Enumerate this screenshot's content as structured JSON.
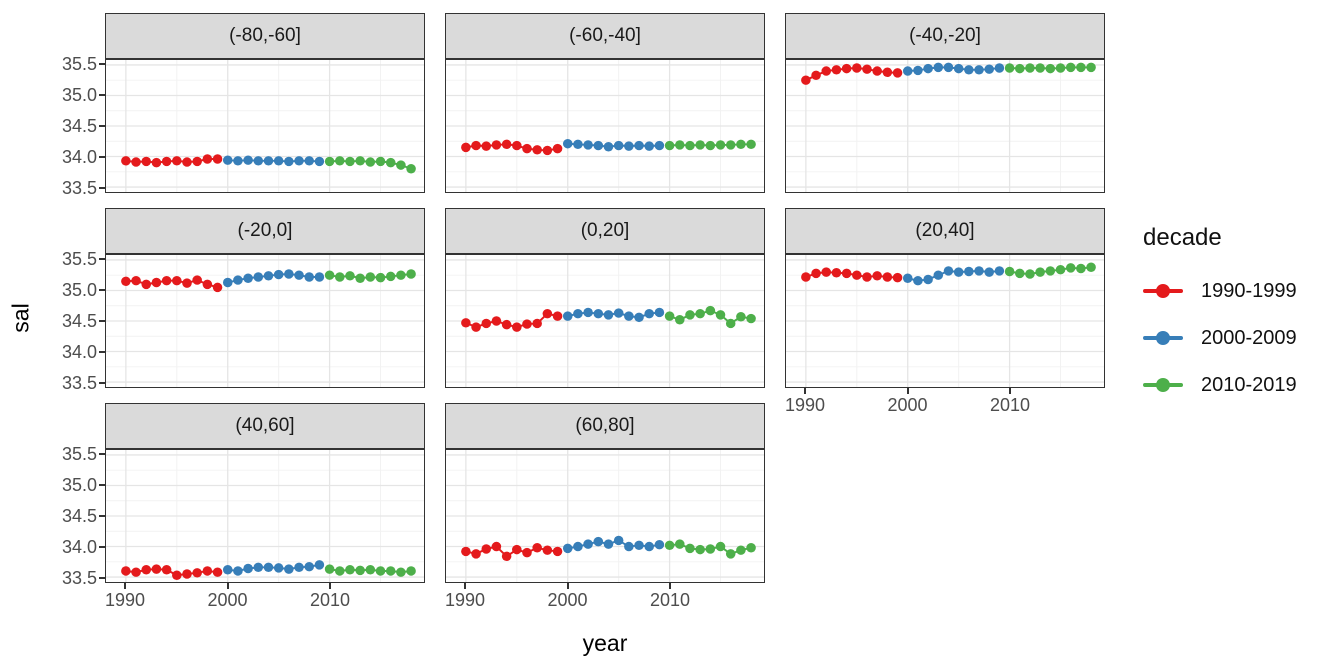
{
  "figure": {
    "background": "#ffffff"
  },
  "axes": {
    "x_title": "year",
    "y_title": "sal",
    "x_ticks": [
      1990,
      2000,
      2010
    ],
    "y_ticks": [
      35.5,
      35.0,
      34.5,
      34.0,
      33.5
    ]
  },
  "legend": {
    "title": "decade",
    "entries": [
      {
        "label": "1990-1999",
        "color": "#E41A1C"
      },
      {
        "label": "2000-2009",
        "color": "#377EB8"
      },
      {
        "label": "2010-2019",
        "color": "#4DAF4A"
      }
    ]
  },
  "style": {
    "strip_bg": "#dadada",
    "panel_border": "#333333",
    "grid_major": "#e5e5e5",
    "grid_minor": "#f2f2f2",
    "tick_text": "#4d4d4d"
  },
  "chart_data": {
    "type": "line",
    "xlabel": "year",
    "ylabel": "sal",
    "x_range": [
      1988,
      2019.3
    ],
    "y_range": [
      33.4,
      35.6
    ],
    "grid": "major+minor",
    "legend_position": "right",
    "series_colors": {
      "1990-1999": "#E41A1C",
      "2000-2009": "#377EB8",
      "2010-2019": "#4DAF4A"
    },
    "years": {
      "1990-1999": [
        1990,
        1991,
        1992,
        1993,
        1994,
        1995,
        1996,
        1997,
        1998,
        1999
      ],
      "2000-2009": [
        2000,
        2001,
        2002,
        2003,
        2004,
        2005,
        2006,
        2007,
        2008,
        2009
      ],
      "2010-2019": [
        2010,
        2011,
        2012,
        2013,
        2014,
        2015,
        2016,
        2017,
        2018
      ]
    },
    "facets": [
      {
        "label": "(-80,-60]",
        "row": 0,
        "col": 0,
        "show_x_axis": false,
        "series": {
          "1990-1999": [
            33.93,
            33.91,
            33.92,
            33.9,
            33.92,
            33.93,
            33.91,
            33.92,
            33.96,
            33.96
          ],
          "2000-2009": [
            33.94,
            33.93,
            33.94,
            33.93,
            33.93,
            33.93,
            33.92,
            33.93,
            33.93,
            33.92
          ],
          "2010-2019": [
            33.92,
            33.93,
            33.92,
            33.93,
            33.91,
            33.92,
            33.9,
            33.86,
            33.8
          ]
        }
      },
      {
        "label": "(-60,-40]",
        "row": 0,
        "col": 1,
        "show_x_axis": false,
        "series": {
          "1990-1999": [
            34.15,
            34.18,
            34.17,
            34.19,
            34.2,
            34.18,
            34.13,
            34.11,
            34.1,
            34.13
          ],
          "2000-2009": [
            34.21,
            34.2,
            34.19,
            34.18,
            34.16,
            34.18,
            34.17,
            34.18,
            34.17,
            34.18
          ],
          "2010-2019": [
            34.18,
            34.19,
            34.18,
            34.19,
            34.18,
            34.19,
            34.19,
            34.2,
            34.2
          ]
        }
      },
      {
        "label": "(-40,-20]",
        "row": 0,
        "col": 2,
        "show_x_axis": false,
        "series": {
          "1990-1999": [
            35.25,
            35.33,
            35.4,
            35.42,
            35.44,
            35.45,
            35.43,
            35.4,
            35.38,
            35.37
          ],
          "2000-2009": [
            35.4,
            35.41,
            35.44,
            35.46,
            35.46,
            35.44,
            35.42,
            35.42,
            35.43,
            35.45
          ],
          "2010-2019": [
            35.45,
            35.44,
            35.45,
            35.45,
            35.44,
            35.45,
            35.46,
            35.46,
            35.46
          ]
        }
      },
      {
        "label": "(-20,0]",
        "row": 1,
        "col": 0,
        "show_x_axis": false,
        "series": {
          "1990-1999": [
            35.15,
            35.16,
            35.1,
            35.13,
            35.16,
            35.16,
            35.12,
            35.17,
            35.1,
            35.05
          ],
          "2000-2009": [
            35.13,
            35.17,
            35.2,
            35.22,
            35.24,
            35.26,
            35.27,
            35.25,
            35.22,
            35.22
          ],
          "2010-2019": [
            35.25,
            35.22,
            35.24,
            35.2,
            35.22,
            35.21,
            35.23,
            35.25,
            35.27
          ]
        }
      },
      {
        "label": "(0,20]",
        "row": 1,
        "col": 1,
        "show_x_axis": false,
        "series": {
          "1990-1999": [
            34.47,
            34.4,
            34.46,
            34.5,
            34.44,
            34.4,
            34.45,
            34.46,
            34.62,
            34.58
          ],
          "2000-2009": [
            34.58,
            34.62,
            34.64,
            34.62,
            34.6,
            34.63,
            34.58,
            34.56,
            34.62,
            34.64
          ],
          "2010-2019": [
            34.58,
            34.52,
            34.6,
            34.62,
            34.67,
            34.6,
            34.46,
            34.57,
            34.54
          ]
        }
      },
      {
        "label": "(20,40]",
        "row": 1,
        "col": 2,
        "show_x_axis": true,
        "series": {
          "1990-1999": [
            35.22,
            35.28,
            35.3,
            35.29,
            35.28,
            35.25,
            35.22,
            35.24,
            35.22,
            35.21
          ],
          "2000-2009": [
            35.2,
            35.16,
            35.18,
            35.25,
            35.32,
            35.3,
            35.31,
            35.32,
            35.3,
            35.32
          ],
          "2010-2019": [
            35.31,
            35.28,
            35.27,
            35.3,
            35.32,
            35.34,
            35.37,
            35.36,
            35.38
          ]
        }
      },
      {
        "label": "(40,60]",
        "row": 2,
        "col": 0,
        "show_x_axis": true,
        "series": {
          "1990-1999": [
            33.6,
            33.58,
            33.62,
            33.63,
            33.62,
            33.53,
            33.55,
            33.57,
            33.6,
            33.58
          ],
          "2000-2009": [
            33.62,
            33.6,
            33.64,
            33.66,
            33.66,
            33.65,
            33.63,
            33.66,
            33.67,
            33.7
          ],
          "2010-2019": [
            33.63,
            33.6,
            33.62,
            33.61,
            33.62,
            33.6,
            33.6,
            33.58,
            33.6
          ]
        }
      },
      {
        "label": "(60,80]",
        "row": 2,
        "col": 1,
        "show_x_axis": true,
        "series": {
          "1990-1999": [
            33.92,
            33.88,
            33.96,
            34.0,
            33.84,
            33.95,
            33.9,
            33.98,
            33.94,
            33.92
          ],
          "2000-2009": [
            33.97,
            34.0,
            34.04,
            34.08,
            34.04,
            34.1,
            34.0,
            34.02,
            34.0,
            34.03
          ],
          "2010-2019": [
            34.02,
            34.04,
            33.97,
            33.95,
            33.96,
            34.0,
            33.88,
            33.94,
            33.98
          ]
        }
      }
    ]
  }
}
